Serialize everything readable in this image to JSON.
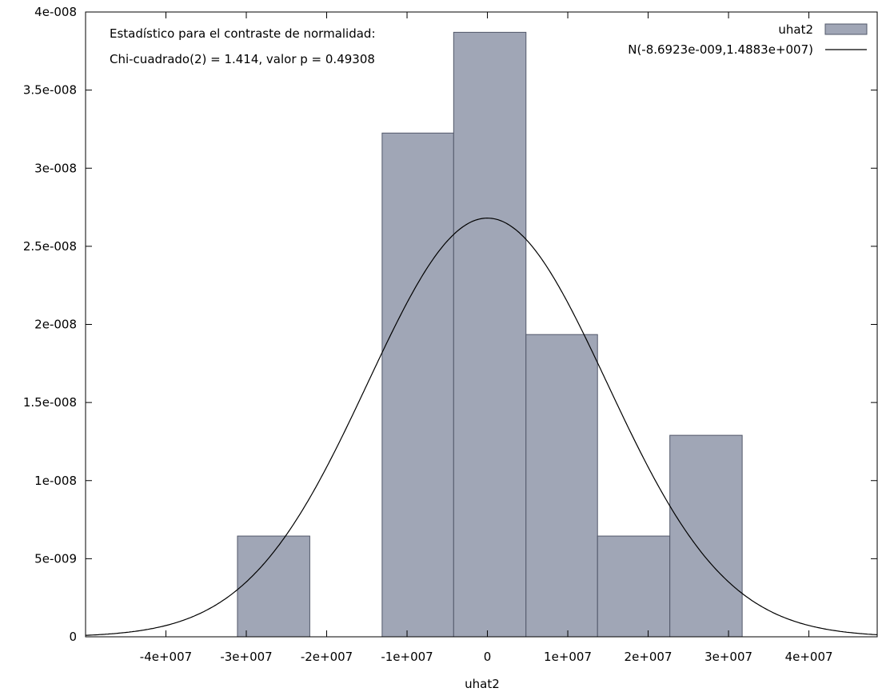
{
  "chart_data": {
    "type": "bar",
    "title": "",
    "xlabel": "uhat2",
    "ylabel": "",
    "xlim": [
      -50000000,
      48500000
    ],
    "ylim": [
      0,
      4e-08
    ],
    "grid": false,
    "legend_position": "top-right",
    "annotations": [
      "Estadístico para el contraste de normalidad:",
      "Chi-cuadrado(2) = 1.414, valor p = 0.49308"
    ],
    "x_ticks": [
      {
        "value": -40000000,
        "label": "-4e+007"
      },
      {
        "value": -30000000,
        "label": "-3e+007"
      },
      {
        "value": -20000000,
        "label": "-2e+007"
      },
      {
        "value": -10000000,
        "label": "-1e+007"
      },
      {
        "value": 0,
        "label": "0"
      },
      {
        "value": 10000000,
        "label": "1e+007"
      },
      {
        "value": 20000000,
        "label": "2e+007"
      },
      {
        "value": 30000000,
        "label": "3e+007"
      },
      {
        "value": 40000000,
        "label": "4e+007"
      }
    ],
    "y_ticks": [
      {
        "value": 0,
        "label": "0"
      },
      {
        "value": 5e-09,
        "label": "5e-009"
      },
      {
        "value": 1e-08,
        "label": "1e-008"
      },
      {
        "value": 1.5e-08,
        "label": "1.5e-008"
      },
      {
        "value": 2e-08,
        "label": "2e-008"
      },
      {
        "value": 2.5e-08,
        "label": "2.5e-008"
      },
      {
        "value": 3e-08,
        "label": "3e-008"
      },
      {
        "value": 3.5e-08,
        "label": "3.5e-008"
      },
      {
        "value": 4e-08,
        "label": "4e-008"
      }
    ],
    "series": [
      {
        "name": "uhat2",
        "type": "histogram",
        "color": "#a0a6b6",
        "bins": [
          {
            "x0": -31100000,
            "x1": -22100000,
            "value": 6.45e-09
          },
          {
            "x0": -22100000,
            "x1": -13100000,
            "value": 0
          },
          {
            "x0": -13100000,
            "x1": -4200000,
            "value": 3.225e-08
          },
          {
            "x0": -4200000,
            "x1": 4800000,
            "value": 3.87e-08
          },
          {
            "x0": 4800000,
            "x1": 13700000,
            "value": 1.935e-08
          },
          {
            "x0": 13700000,
            "x1": 22700000,
            "value": 6.45e-09
          },
          {
            "x0": 22700000,
            "x1": 31700000,
            "value": 1.29e-08
          }
        ]
      },
      {
        "name": "N(-8.6923e-009,1.4883e+007)",
        "type": "line",
        "color": "#000000",
        "mean": -8.6923e-09,
        "sd": 14883000
      }
    ]
  }
}
